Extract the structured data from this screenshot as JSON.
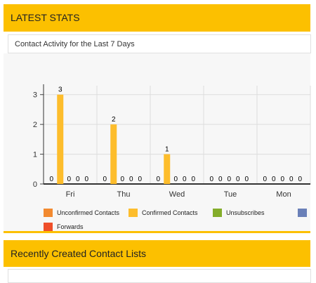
{
  "header": {
    "title": "LATEST STATS"
  },
  "subheader": {
    "label": "Contact Activity for the Last 7 Days"
  },
  "section2": {
    "title": "Recently Created Contact Lists"
  },
  "chart_data": {
    "type": "bar",
    "categories": [
      "Fri",
      "Thu",
      "Wed",
      "Tue",
      "Mon"
    ],
    "series": [
      {
        "name": "Unconfirmed Contacts",
        "color": "#f28a30",
        "values": [
          0,
          0,
          0,
          0,
          0
        ]
      },
      {
        "name": "Confirmed Contacts",
        "color": "#fdbd2c",
        "values": [
          3,
          2,
          1,
          0,
          0
        ]
      },
      {
        "name": "Unsubscribes",
        "color": "#84ad2a",
        "values": [
          0,
          0,
          0,
          0,
          0
        ]
      },
      {
        "name": "",
        "color": "#6a80b8",
        "values": [
          0,
          0,
          0,
          0,
          0
        ]
      },
      {
        "name": "Forwards",
        "color": "#ef4f2a",
        "values": [
          0,
          0,
          0,
          0,
          0
        ]
      }
    ],
    "yticks": [
      0,
      1,
      2,
      3
    ],
    "ylim": [
      0,
      3.3
    ],
    "grid": true,
    "legend": "bottom"
  }
}
